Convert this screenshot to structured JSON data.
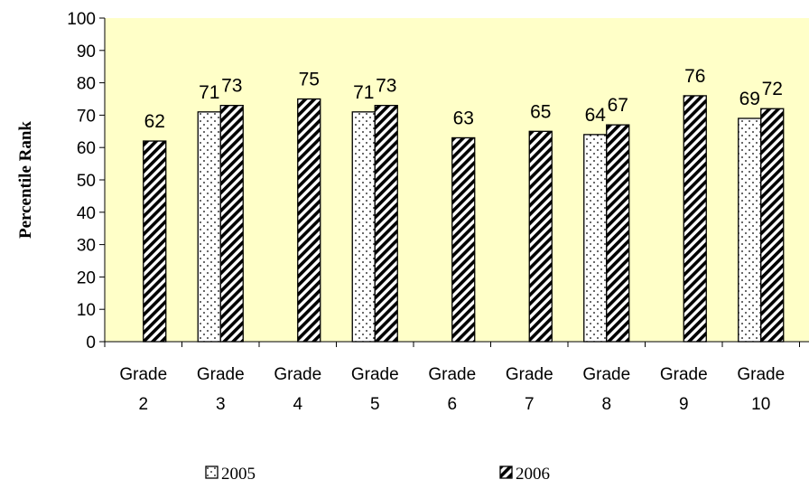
{
  "chart_data": {
    "type": "bar",
    "ylabel": "Percentile Rank",
    "ylim": [
      0,
      100
    ],
    "ytick_step": 10,
    "grid": false,
    "legend_position": "bottom",
    "plot_background": "#FFFFC8",
    "categories": [
      [
        "Grade",
        "2"
      ],
      [
        "Grade",
        "3"
      ],
      [
        "Grade",
        "4"
      ],
      [
        "Grade",
        "5"
      ],
      [
        "Grade",
        "6"
      ],
      [
        "Grade",
        "7"
      ],
      [
        "Grade",
        "8"
      ],
      [
        "Grade",
        "9"
      ],
      [
        "Grade",
        "10"
      ]
    ],
    "series": [
      {
        "name": "2005",
        "pattern": "dots",
        "values": [
          null,
          71,
          null,
          71,
          null,
          null,
          64,
          null,
          69
        ]
      },
      {
        "name": "2006",
        "pattern": "diagonal-stripes",
        "values": [
          62,
          73,
          75,
          73,
          63,
          65,
          67,
          76,
          72
        ]
      }
    ]
  }
}
